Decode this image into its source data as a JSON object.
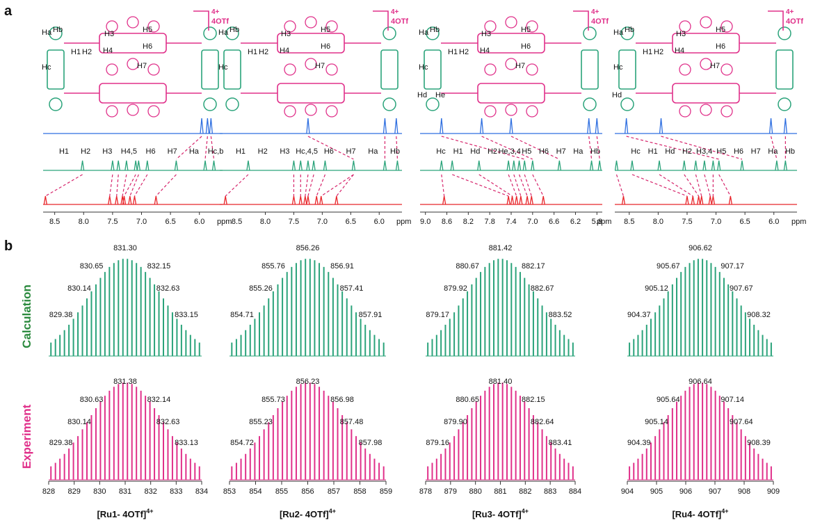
{
  "panel_a_label": "a",
  "panel_b_label": "b",
  "row_labels": {
    "calc": "Calculation",
    "exp": "Experiment"
  },
  "colors": {
    "green": "#2aa37a",
    "magenta": "#e0308a",
    "blue": "#2f6fe0",
    "red": "#e8262b",
    "dash": "#d6246b"
  },
  "charge_label": "4+",
  "anion_label": "4OTf",
  "nmr_unit": "ppm",
  "complexes": [
    {
      "name": "[Ru1- 4OTf]",
      "superscript": "4+",
      "struct_labels": [
        "Ha",
        "Hb",
        "H1",
        "H2",
        "H3",
        "H4",
        "H5",
        "H6",
        "H7",
        "Hc"
      ],
      "nmr_axis": {
        "ticks": [
          "8.5",
          "8.0",
          "7.5",
          "7.0",
          "6.5",
          "6.0"
        ],
        "range": [
          8.7,
          5.6
        ]
      },
      "blue_peaks": [
        5.96,
        5.86,
        5.8
      ],
      "green_peaks": [
        8.02,
        7.5,
        7.4,
        7.26,
        7.1,
        7.05,
        6.9,
        6.4,
        5.9,
        5.75
      ],
      "red_peaks": [
        8.66,
        7.55,
        7.43,
        7.33,
        7.3,
        7.2,
        7.12,
        6.75
      ],
      "green_labels": [
        "H1",
        "H2",
        "H3",
        "H4,5",
        "H6",
        "H7",
        "Ha",
        "Hc,b"
      ],
      "ms_calc": {
        "labels": [
          "831.30",
          "830.65",
          "832.15",
          "830.14",
          "832.63",
          "829.38",
          "833.15"
        ],
        "x": [
          828,
          834
        ],
        "center": 831.3,
        "step": 0.25
      },
      "ms_exp": {
        "labels": [
          "831.38",
          "830.63",
          "832.14",
          "830.14",
          "832.63",
          "829.38",
          "833.13"
        ],
        "x_ticks": [
          "828",
          "829",
          "830",
          "831",
          "832",
          "833",
          "834"
        ],
        "center": 831.38,
        "step": 0.25
      }
    },
    {
      "name": "[Ru2- 4OTf]",
      "superscript": "4+",
      "struct_labels": [
        "Ha",
        "Hb",
        "H1",
        "H2",
        "H3",
        "H4",
        "H5",
        "H6",
        "H7",
        "Hc"
      ],
      "nmr_axis": {
        "ticks": [
          "8.0",
          "7.5",
          "7.0",
          "6.5",
          "6.0"
        ],
        "ticks_lead": "8.5",
        "range": [
          8.8,
          5.6
        ]
      },
      "blue_peaks": [
        7.25,
        5.9,
        5.7
      ],
      "green_peaks": [
        8.3,
        7.5,
        7.38,
        7.25,
        7.15,
        6.95,
        6.45,
        5.9,
        5.68
      ],
      "red_peaks": [
        8.7,
        7.5,
        7.38,
        7.3,
        7.25,
        7.1,
        7.02,
        6.75
      ],
      "green_labels": [
        "H1",
        "H2",
        "H3",
        "Hc,4,5",
        "H6",
        "H7",
        "Ha",
        "Hb"
      ],
      "ms_calc": {
        "labels": [
          "856.26",
          "855.76",
          "856.91",
          "855.26",
          "857.41",
          "854.71",
          "857.91"
        ],
        "x": [
          853,
          859
        ],
        "center": 856.26,
        "step": 0.25
      },
      "ms_exp": {
        "labels": [
          "856.23",
          "855.73",
          "856.98",
          "855.23",
          "857.48",
          "854.72",
          "857.98"
        ],
        "x_ticks": [
          "853",
          "854",
          "855",
          "856",
          "857",
          "858",
          "859"
        ],
        "center": 856.23,
        "step": 0.25
      }
    },
    {
      "name": "[Ru3- 4OTf]",
      "superscript": "4+",
      "struct_labels": [
        "Ha",
        "Hb",
        "H1",
        "H2",
        "H3",
        "H4",
        "H5",
        "H6",
        "H7",
        "Hc",
        "Hd",
        "He"
      ],
      "nmr_axis": {
        "ticks": [
          "9.0",
          "8.6",
          "8.2",
          "7.8",
          "7.4",
          "7.0",
          "6.6",
          "6.2",
          "5.8"
        ],
        "range": [
          9.1,
          5.7
        ]
      },
      "blue_peaks": [
        8.7,
        7.95,
        7.4,
        5.95,
        5.8
      ],
      "green_peaks": [
        8.7,
        8.5,
        8.0,
        7.45,
        7.35,
        7.25,
        7.15,
        7.0,
        6.5,
        5.9,
        5.75
      ],
      "red_peaks": [
        8.65,
        7.45,
        7.38,
        7.3,
        7.22,
        7.1,
        7.02,
        6.8
      ],
      "green_labels": [
        "Hc",
        "H1",
        "Hd",
        "H2",
        "He,3,4",
        "H5",
        "H6",
        "H7",
        "Ha",
        "Hb"
      ],
      "ms_calc": {
        "labels": [
          "881.42",
          "880.67",
          "882.17",
          "879.92",
          "882.67",
          "879.17",
          "883.52"
        ],
        "x": [
          878,
          884
        ],
        "center": 881.42,
        "step": 0.25
      },
      "ms_exp": {
        "labels": [
          "881.40",
          "880.65",
          "882.15",
          "879.90",
          "882.64",
          "879.16",
          "883.41"
        ],
        "x_ticks": [
          "878",
          "879",
          "880",
          "881",
          "882",
          "883",
          "884"
        ],
        "center": 881.4,
        "step": 0.25
      }
    },
    {
      "name": "[Ru4- 4OTf]",
      "superscript": "4+",
      "struct_labels": [
        "Ha",
        "Hb",
        "H1",
        "H2",
        "H3",
        "H4",
        "H5",
        "H6",
        "H7",
        "Hc",
        "Hd"
      ],
      "nmr_axis": {
        "ticks": [
          "8.5",
          "8.0",
          "7.5",
          "7.0",
          "6.5",
          "6.0"
        ],
        "range": [
          8.75,
          5.6
        ]
      },
      "blue_peaks": [
        8.55,
        7.95,
        6.05,
        5.8
      ],
      "green_peaks": [
        8.72,
        8.45,
        7.98,
        7.55,
        7.35,
        7.2,
        7.05,
        6.95,
        6.55,
        5.95,
        5.8
      ],
      "red_peaks": [
        8.6,
        7.5,
        7.4,
        7.3,
        7.25,
        7.1,
        7.05,
        6.75
      ],
      "green_labels": [
        "Hc",
        "H1",
        "Hd",
        "H2",
        "H3,4",
        "H5",
        "H6",
        "H7",
        "Ha",
        "Hb"
      ],
      "ms_calc": {
        "labels": [
          "906.62",
          "905.67",
          "907.17",
          "905.12",
          "907.67",
          "904.37",
          "908.32"
        ],
        "x": [
          904,
          909
        ],
        "center": 906.62,
        "step": 0.25
      },
      "ms_exp": {
        "labels": [
          "906.64",
          "905.64",
          "907.14",
          "905.14",
          "907.64",
          "904.39",
          "908.39"
        ],
        "x_ticks": [
          "904",
          "905",
          "906",
          "907",
          "908",
          "909"
        ],
        "center": 906.64,
        "step": 0.25
      }
    }
  ]
}
